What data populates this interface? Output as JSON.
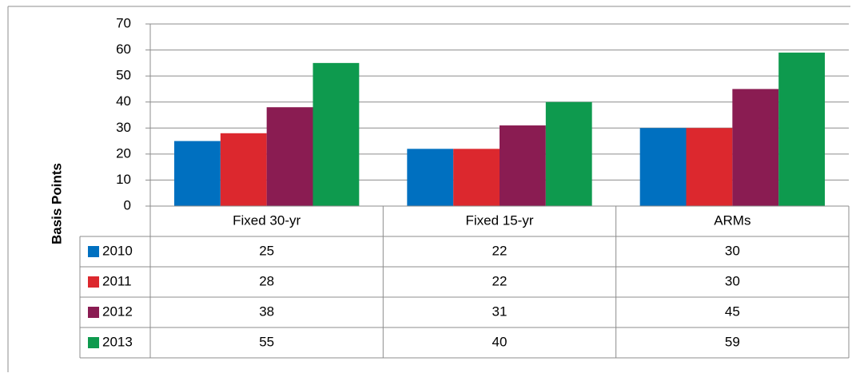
{
  "chart_data": {
    "type": "bar",
    "y_label": "Basis Points",
    "categories": [
      "Fixed 30-yr",
      "Fixed 15-yr",
      "ARMs"
    ],
    "series": [
      {
        "name": "2010",
        "color": "#0070c0",
        "values": [
          25,
          22,
          30
        ]
      },
      {
        "name": "2011",
        "color": "#dc282e",
        "values": [
          28,
          22,
          30
        ]
      },
      {
        "name": "2012",
        "color": "#8a1c52",
        "values": [
          38,
          31,
          45
        ]
      },
      {
        "name": "2013",
        "color": "#0e9a4e",
        "values": [
          55,
          40,
          59
        ]
      }
    ],
    "ylim": [
      0,
      70
    ],
    "yticks": [
      0,
      10,
      20,
      30,
      40,
      50,
      60,
      70
    ],
    "grid": true
  }
}
